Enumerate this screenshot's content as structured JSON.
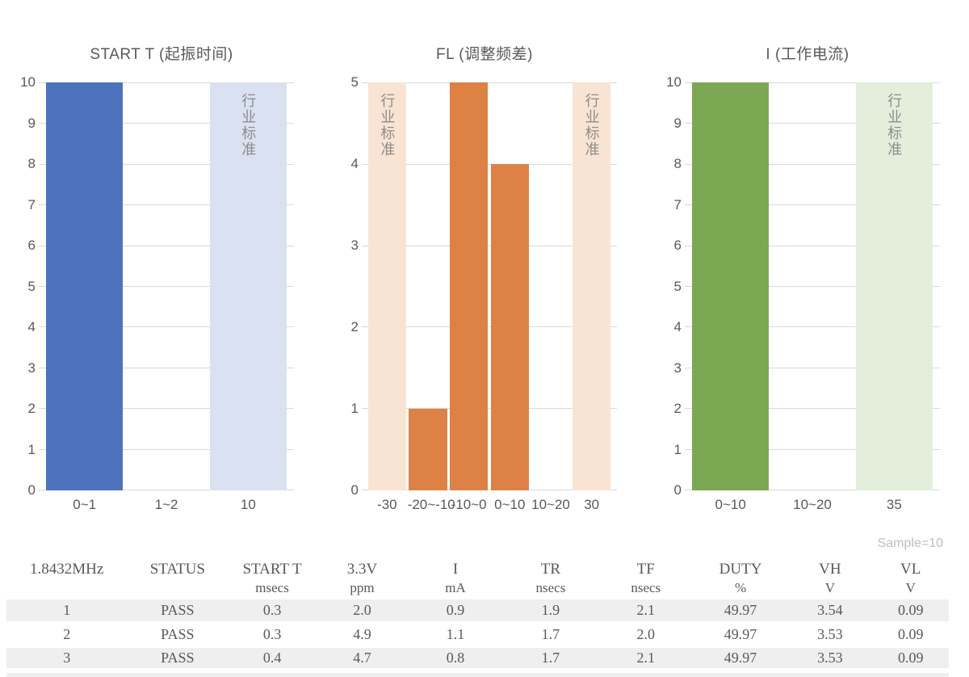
{
  "chart_data": [
    {
      "type": "bar",
      "title": "START T (起振时间)",
      "categories": [
        "0~1",
        "1~2",
        "10"
      ],
      "values": [
        10,
        0,
        10
      ],
      "ylim": [
        0,
        10
      ],
      "ytick_step": 1,
      "grid": true,
      "standard_indices": [
        2
      ],
      "standard_label": "行业标准",
      "bar_color": "#4d72be",
      "standard_color": "#dae1f1"
    },
    {
      "type": "bar",
      "title": "FL (调整频差)",
      "categories": [
        "-30",
        "-20~-10",
        "-10~0",
        "0~10",
        "10~20",
        "30"
      ],
      "values": [
        5,
        1,
        5,
        4,
        0,
        5
      ],
      "ylim": [
        0,
        5
      ],
      "ytick_step": 1,
      "grid": true,
      "standard_indices": [
        0,
        5
      ],
      "standard_label": "行业标准",
      "bar_color": "#dd8144",
      "standard_color": "#f9e4d3"
    },
    {
      "type": "bar",
      "title": "I (工作电流)",
      "categories": [
        "0~10",
        "10~20",
        "35"
      ],
      "values": [
        10,
        0,
        10
      ],
      "ylim": [
        0,
        10
      ],
      "ytick_step": 1,
      "grid": true,
      "standard_indices": [
        2
      ],
      "standard_label": "行业标准",
      "bar_color": "#7ba953",
      "standard_color": "#e3efdb"
    }
  ],
  "table": {
    "sample_note": "Sample=10",
    "columns": [
      {
        "label": "1.8432MHz",
        "unit": ""
      },
      {
        "label": "STATUS",
        "unit": ""
      },
      {
        "label": "START T",
        "unit": "msecs"
      },
      {
        "label": "3.3V",
        "unit": "ppm"
      },
      {
        "label": "I",
        "unit": "mA"
      },
      {
        "label": "TR",
        "unit": "nsecs"
      },
      {
        "label": "TF",
        "unit": "nsecs"
      },
      {
        "label": "DUTY",
        "unit": "%"
      },
      {
        "label": "VH",
        "unit": "V"
      },
      {
        "label": "VL",
        "unit": "V"
      }
    ],
    "rows": [
      [
        "1",
        "PASS",
        "0.3",
        "2.0",
        "0.9",
        "1.9",
        "2.1",
        "49.97",
        "3.54",
        "0.09"
      ],
      [
        "2",
        "PASS",
        "0.3",
        "4.9",
        "1.1",
        "1.7",
        "2.0",
        "49.97",
        "3.53",
        "0.09"
      ],
      [
        "3",
        "PASS",
        "0.4",
        "4.7",
        "0.8",
        "1.7",
        "2.1",
        "49.97",
        "3.53",
        "0.09"
      ]
    ]
  },
  "colors": {
    "blue": "#4d72be",
    "light_blue": "#dae1f1",
    "orange": "#dd8144",
    "light_orange": "#f9e4d3",
    "green": "#7ba953",
    "light_green": "#e3efdb",
    "gridline": "#d9d9d9",
    "text_gray": "#595959",
    "stripe_gray": "#efefef",
    "note_gray": "#bfbfbf"
  }
}
